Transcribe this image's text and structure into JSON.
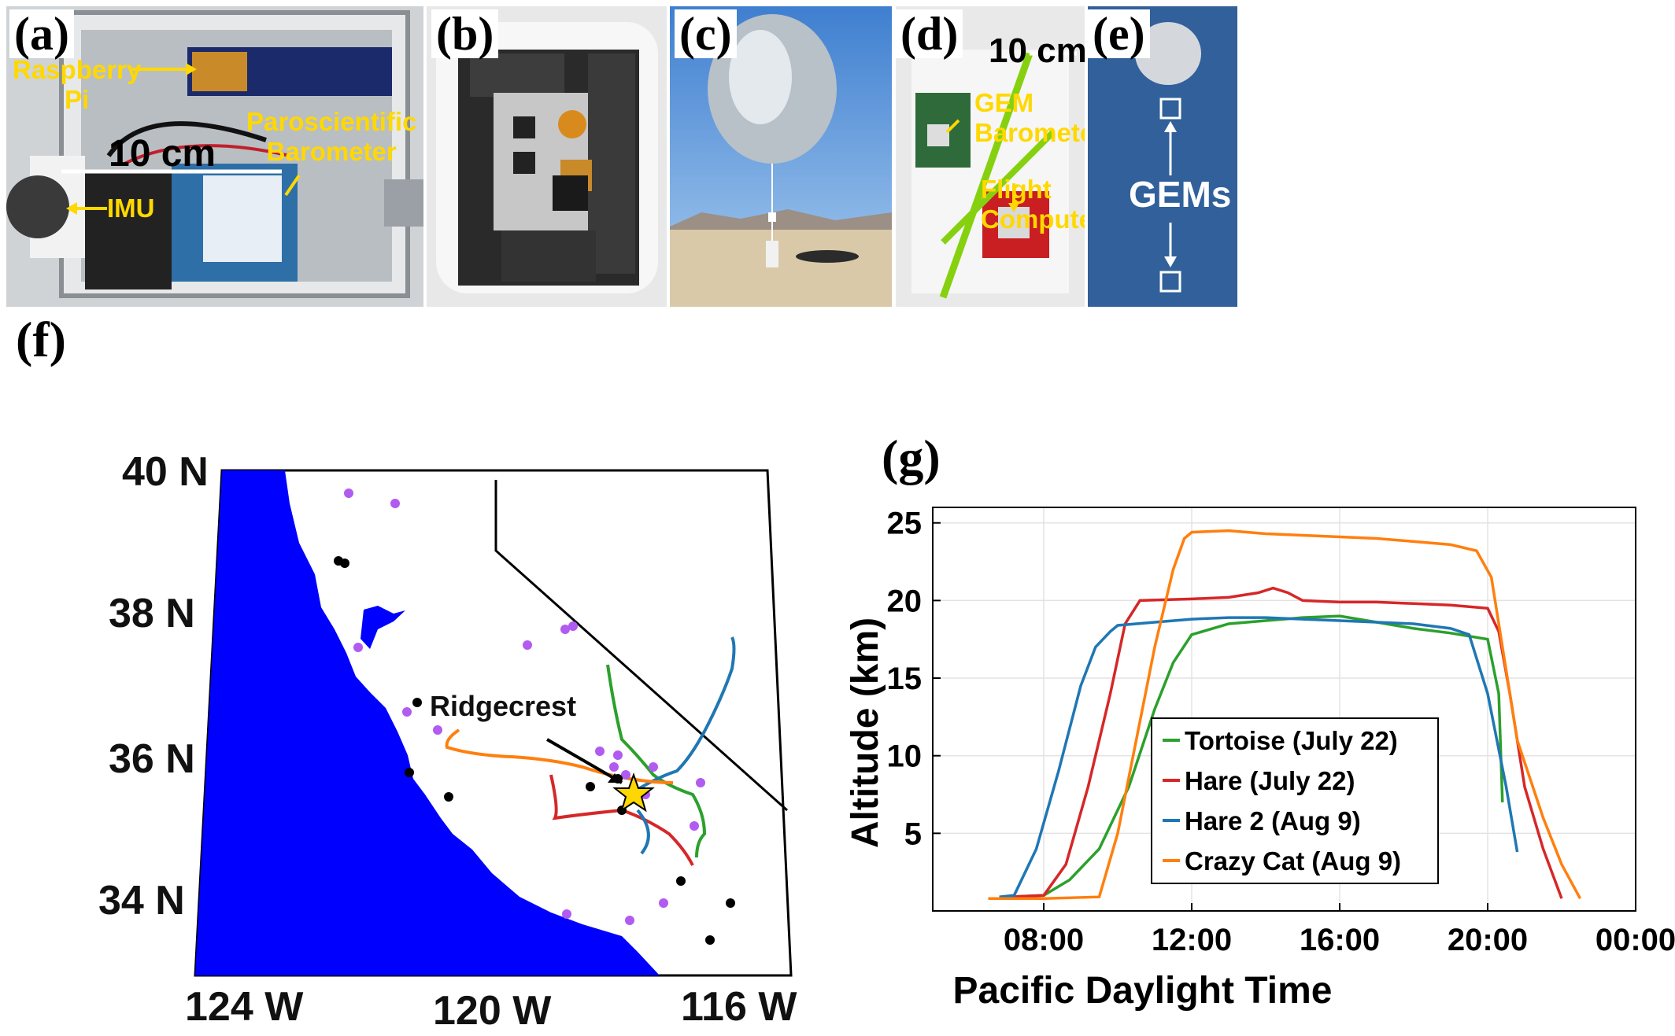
{
  "panels": {
    "a": {
      "label": "(a)",
      "annotations": {
        "raspberry_pi": "Raspberry\nPi",
        "paroscientific": "Paroscientific\nBarometer",
        "imu": "IMU"
      },
      "scale": "10 cm"
    },
    "b": {
      "label": "(b)"
    },
    "c": {
      "label": "(c)"
    },
    "d": {
      "label": "(d)",
      "scale": "10 cm",
      "annotations": {
        "gem_barometer": "GEM\nBarometer",
        "flight_computer": "Flight\nComputer"
      }
    },
    "e": {
      "label": "(e)",
      "annotation": "GEMs"
    },
    "f": {
      "label": "(f)",
      "lat_ticks": [
        "40 N",
        "38 N",
        "36 N",
        "34 N"
      ],
      "lon_ticks": [
        "124 W",
        "120 W",
        "116 W"
      ],
      "annotation": "Ridgecrest",
      "colors": {
        "ocean": "#0000ff",
        "land": "#ffffff",
        "border": "#000000",
        "purple_dots": "#b15bf0",
        "black_dots": "#000000",
        "star": "#ffd700"
      }
    },
    "g": {
      "label": "(g)"
    }
  },
  "chart_data": {
    "type": "line",
    "title": "",
    "xlabel": "Pacific Daylight Time",
    "ylabel": "Altitude (km)",
    "x_ticks": [
      "08:00",
      "12:00",
      "16:00",
      "20:00",
      "00:00"
    ],
    "y_ticks": [
      5,
      10,
      15,
      20,
      25
    ],
    "xlim_hours": [
      5,
      24
    ],
    "ylim": [
      0,
      26
    ],
    "grid": true,
    "legend_placement": "bottom-center",
    "series": [
      {
        "name": "Tortoise (July 22)",
        "color": "#2ca02c",
        "x_hours": [
          7.0,
          8.0,
          8.7,
          9.5,
          10.3,
          11.0,
          11.5,
          12.0,
          13.0,
          14.0,
          15.0,
          16.0,
          17.0,
          18.0,
          19.0,
          20.0,
          20.3,
          20.4
        ],
        "y": [
          0.9,
          1.0,
          2.0,
          4.0,
          8.0,
          13.0,
          16.0,
          17.8,
          18.5,
          18.7,
          18.9,
          19.0,
          18.6,
          18.2,
          17.9,
          17.5,
          14.0,
          7.0
        ]
      },
      {
        "name": "Hare (July 22)",
        "color": "#d62728",
        "x_hours": [
          7.0,
          8.0,
          8.6,
          9.2,
          9.8,
          10.2,
          10.6,
          12.0,
          13.0,
          13.8,
          14.2,
          14.6,
          15.0,
          16.0,
          17.0,
          18.0,
          19.0,
          20.0,
          20.3,
          20.6,
          21.0,
          21.5,
          22.0
        ],
        "y": [
          0.9,
          1.0,
          3.0,
          8.0,
          14.0,
          18.5,
          20.0,
          20.1,
          20.2,
          20.5,
          20.8,
          20.5,
          20.0,
          19.9,
          19.9,
          19.8,
          19.7,
          19.5,
          18.0,
          14.0,
          8.0,
          4.0,
          0.8
        ]
      },
      {
        "name": "Hare 2 (Aug 9)",
        "color": "#1f77b4",
        "x_hours": [
          6.8,
          7.2,
          7.8,
          8.4,
          9.0,
          9.4,
          9.8,
          10.0,
          11.0,
          12.0,
          13.0,
          14.0,
          15.0,
          16.0,
          17.0,
          18.0,
          19.0,
          19.5,
          20.0,
          20.5,
          20.8
        ],
        "y": [
          0.9,
          1.0,
          4.0,
          9.0,
          14.5,
          17.0,
          18.0,
          18.4,
          18.6,
          18.8,
          18.9,
          18.9,
          18.8,
          18.7,
          18.6,
          18.5,
          18.2,
          17.8,
          14.0,
          8.0,
          3.8
        ]
      },
      {
        "name": "Crazy Cat (Aug 9)",
        "color": "#ff7f0e",
        "x_hours": [
          6.5,
          8.0,
          9.5,
          10.0,
          10.5,
          11.0,
          11.5,
          11.8,
          12.0,
          13.0,
          14.0,
          15.0,
          16.0,
          17.0,
          18.0,
          19.0,
          19.7,
          20.1,
          20.4,
          20.8,
          21.5,
          22.0,
          22.5
        ],
        "y": [
          0.8,
          0.8,
          0.9,
          5.0,
          11.0,
          17.0,
          22.0,
          24.0,
          24.4,
          24.5,
          24.3,
          24.2,
          24.1,
          24.0,
          23.8,
          23.6,
          23.2,
          21.5,
          17.0,
          11.0,
          6.0,
          3.0,
          0.8
        ]
      }
    ]
  }
}
